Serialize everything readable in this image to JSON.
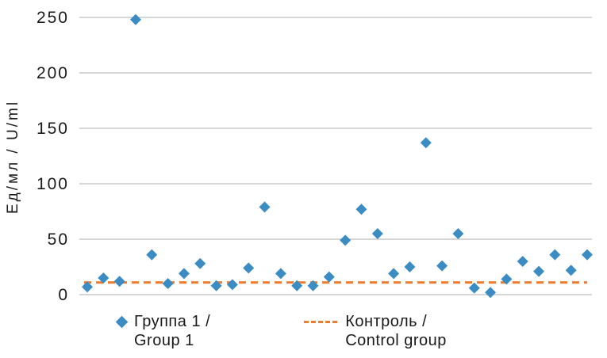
{
  "chart_data": {
    "type": "scatter",
    "title": "",
    "xlabel": "",
    "ylabel": "Ед/мл / U/ml",
    "ylim": [
      0,
      250
    ],
    "yticks": [
      0,
      50,
      100,
      150,
      200,
      250
    ],
    "grid": "horizontal",
    "legend_position": "bottom",
    "series": [
      {
        "name": "Группа 1 / Group 1",
        "marker": "diamond",
        "color": "#3a8cc3",
        "values": [
          7,
          15,
          12,
          248,
          36,
          10,
          19,
          28,
          8,
          9,
          24,
          79,
          19,
          8,
          8,
          16,
          49,
          77,
          55,
          19,
          25,
          137,
          26,
          55,
          6,
          2,
          14,
          30,
          21,
          36,
          22,
          36
        ]
      }
    ],
    "reference_line": {
      "name": "Контроль / Control group",
      "value": 11,
      "style": "dashed",
      "color": "#ed7d31"
    }
  },
  "legend": {
    "items": [
      {
        "line1": "Группа 1 /",
        "line2": "Group 1",
        "marker": "diamond",
        "color": "#3a8cc3"
      },
      {
        "line1": "Контроль /",
        "line2": "Control group",
        "marker": "dashed-line",
        "color": "#ed7d31"
      }
    ]
  },
  "colors": {
    "series": "#3a8cc3",
    "control": "#ed7d31",
    "grid": "#c8c8c8",
    "text": "#1a1a1a"
  }
}
